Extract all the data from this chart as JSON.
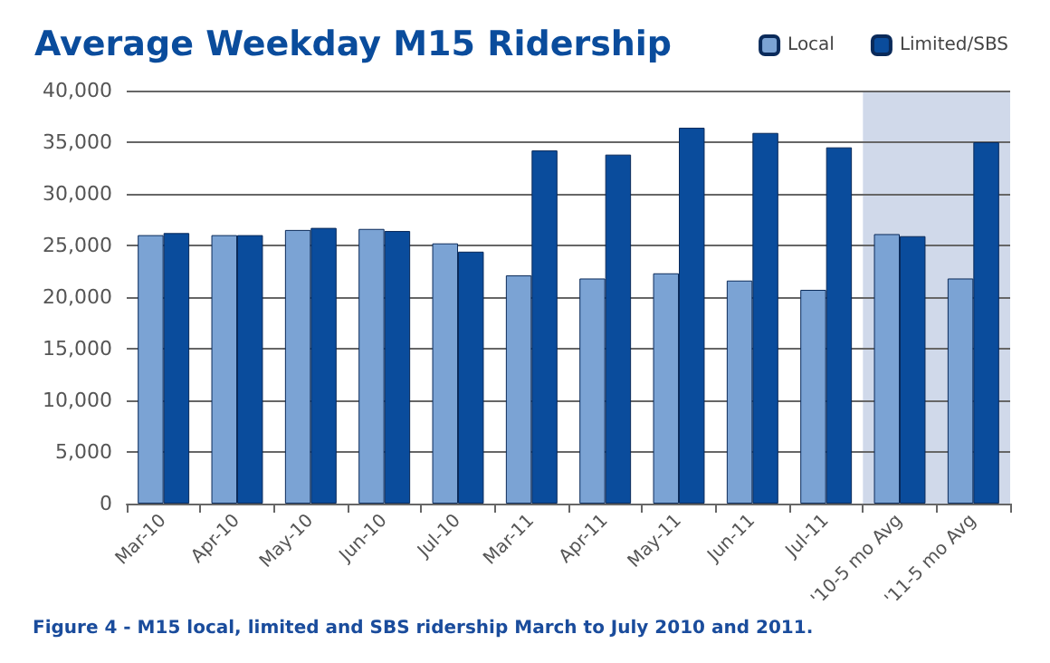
{
  "chart_data": {
    "type": "bar",
    "title": "Average Weekday M15 Ridership",
    "categories": [
      "Mar-10",
      "Apr-10",
      "May-10",
      "Jun-10",
      "Jul-10",
      "Mar-11",
      "Apr-11",
      "May-11",
      "Jun-11",
      "Jul-11",
      "'10-5 mo Avg",
      "'11-5 mo Avg"
    ],
    "series": [
      {
        "name": "Local",
        "color": "#7ba3d4",
        "values": [
          26000,
          26000,
          26500,
          26600,
          25200,
          22100,
          21800,
          22300,
          21600,
          20700,
          26100,
          21800
        ]
      },
      {
        "name": "Limited/SBS",
        "color": "#0a4c9c",
        "values": [
          26200,
          26000,
          26700,
          26400,
          24400,
          34200,
          33800,
          36400,
          35900,
          34500,
          25900,
          35000
        ]
      }
    ],
    "ylim": [
      0,
      40000
    ],
    "yticks": [
      0,
      {
        "value": 5000,
        "label": "5,000"
      },
      {
        "value": 10000,
        "label": "10,000"
      },
      {
        "value": 15000,
        "label": "15,000"
      },
      {
        "value": 20000,
        "label": "20,000"
      },
      {
        "value": 25000,
        "label": "25,000"
      },
      {
        "value": 30000,
        "label": "30,000"
      },
      {
        "value": 35000,
        "label": "35,000"
      },
      {
        "value": 40000,
        "label": "40,000"
      }
    ],
    "grid": "y",
    "legend": "top right",
    "bands": [
      {
        "axis": "x",
        "from": "'10-5 mo Avg",
        "to": "'11-5 mo Avg",
        "color": "#d0d9ea"
      }
    ],
    "annotations": [
      "Figure 4 - M15 local, limited and SBS ridership March to July 2010 and 2011."
    ]
  }
}
